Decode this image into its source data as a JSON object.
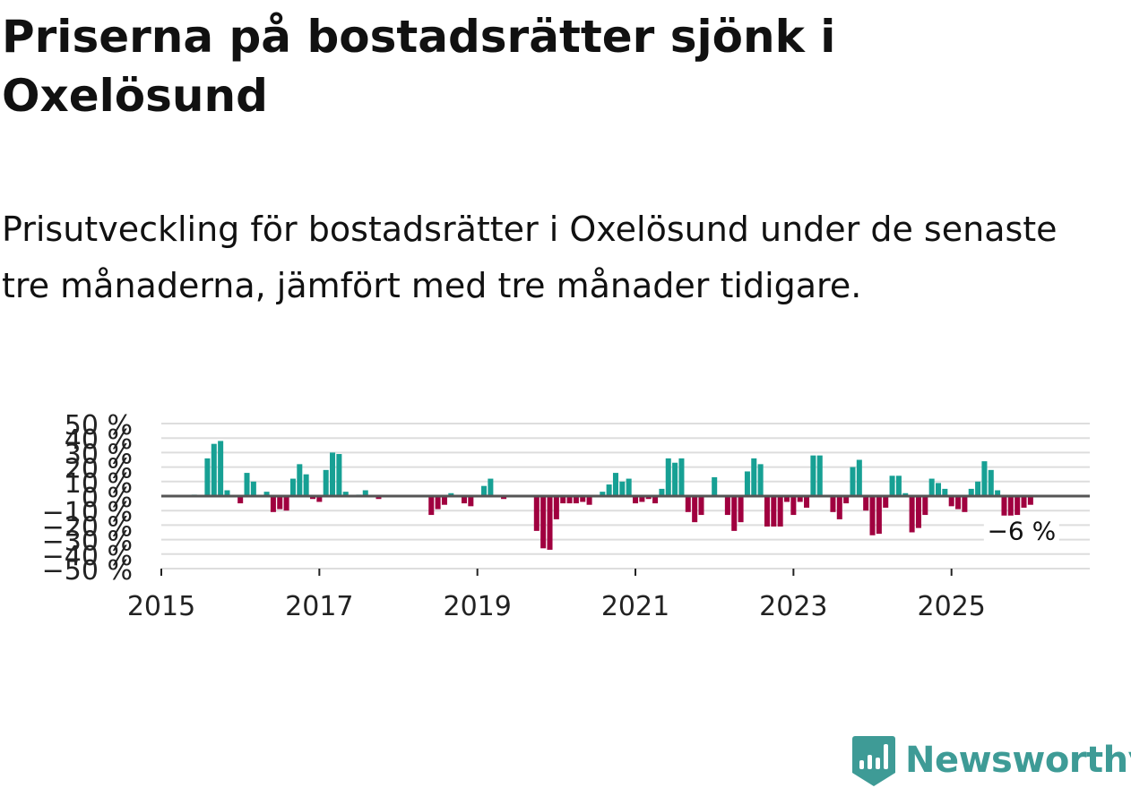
{
  "header": {
    "title": "Priserna på bostadsrätter sjönk i Oxelösund",
    "subtitle": "Prisutveckling för bostadsrätter i Oxelösund under de senaste tre månaderna, jämfört med tre månader tidigare."
  },
  "colors": {
    "positive": "#17a094",
    "negative": "#a0003f",
    "zero_line": "#555555",
    "grid": "#dddddd",
    "brand": "#3e9b96"
  },
  "brand": {
    "name": "Newsworthy",
    "logo_icon": "newsworthy-bar-chart-icon"
  },
  "chart_data": {
    "type": "bar",
    "title": "Priserna på bostadsrätter sjönk i Oxelösund",
    "xlabel": "",
    "ylabel": "",
    "unit": "%",
    "x_range": [
      2015.0,
      2026.75
    ],
    "ylim": [
      -50,
      50
    ],
    "y_ticks": [
      {
        "value": 50,
        "label": "50 %"
      },
      {
        "value": 40,
        "label": "40 %"
      },
      {
        "value": 30,
        "label": "30 %"
      },
      {
        "value": 20,
        "label": "20 %"
      },
      {
        "value": 10,
        "label": "10 %"
      },
      {
        "value": 0,
        "label": "0 %"
      },
      {
        "value": -10,
        "label": "−10 %"
      },
      {
        "value": -20,
        "label": "−20 %"
      },
      {
        "value": -30,
        "label": "−30 %"
      },
      {
        "value": -40,
        "label": "−40 %"
      },
      {
        "value": -50,
        "label": "−50 %"
      }
    ],
    "x_ticks": [
      {
        "value": 2015,
        "label": "2015"
      },
      {
        "value": 2017,
        "label": "2017"
      },
      {
        "value": 2019,
        "label": "2019"
      },
      {
        "value": 2021,
        "label": "2021"
      },
      {
        "value": 2023,
        "label": "2023"
      },
      {
        "value": 2025,
        "label": "2025"
      }
    ],
    "annotation": {
      "date": "2026-01",
      "text": "−6 %"
    },
    "series": [
      {
        "name": "Prisutveckling",
        "points": [
          {
            "date": "2015-06",
            "value": 1
          },
          {
            "date": "2015-08",
            "value": 26
          },
          {
            "date": "2015-09",
            "value": 36
          },
          {
            "date": "2015-10",
            "value": 38
          },
          {
            "date": "2015-11",
            "value": 4
          },
          {
            "date": "2016-01",
            "value": -5
          },
          {
            "date": "2016-02",
            "value": 16
          },
          {
            "date": "2016-03",
            "value": 10
          },
          {
            "date": "2016-05",
            "value": 3
          },
          {
            "date": "2016-06",
            "value": -11
          },
          {
            "date": "2016-07",
            "value": -9
          },
          {
            "date": "2016-08",
            "value": -10
          },
          {
            "date": "2016-09",
            "value": 12
          },
          {
            "date": "2016-10",
            "value": 22
          },
          {
            "date": "2016-11",
            "value": 15
          },
          {
            "date": "2016-12",
            "value": -2
          },
          {
            "date": "2017-01",
            "value": -4
          },
          {
            "date": "2017-02",
            "value": 18
          },
          {
            "date": "2017-03",
            "value": 30
          },
          {
            "date": "2017-04",
            "value": 29
          },
          {
            "date": "2017-05",
            "value": 3
          },
          {
            "date": "2017-07",
            "value": 1
          },
          {
            "date": "2017-08",
            "value": 4
          },
          {
            "date": "2017-10",
            "value": -2
          },
          {
            "date": "2018-06",
            "value": -13
          },
          {
            "date": "2018-07",
            "value": -9
          },
          {
            "date": "2018-08",
            "value": -6
          },
          {
            "date": "2018-09",
            "value": 2
          },
          {
            "date": "2018-11",
            "value": -5
          },
          {
            "date": "2018-12",
            "value": -7
          },
          {
            "date": "2019-02",
            "value": 7
          },
          {
            "date": "2019-03",
            "value": 12
          },
          {
            "date": "2019-05",
            "value": -2
          },
          {
            "date": "2019-10",
            "value": -24
          },
          {
            "date": "2019-11",
            "value": -36
          },
          {
            "date": "2019-12",
            "value": -37
          },
          {
            "date": "2020-01",
            "value": -16
          },
          {
            "date": "2020-02",
            "value": -5
          },
          {
            "date": "2020-03",
            "value": -5
          },
          {
            "date": "2020-04",
            "value": -5
          },
          {
            "date": "2020-05",
            "value": -4
          },
          {
            "date": "2020-06",
            "value": -6
          },
          {
            "date": "2020-08",
            "value": 3
          },
          {
            "date": "2020-09",
            "value": 8
          },
          {
            "date": "2020-10",
            "value": 16
          },
          {
            "date": "2020-11",
            "value": 10
          },
          {
            "date": "2020-12",
            "value": 12
          },
          {
            "date": "2021-01",
            "value": -5
          },
          {
            "date": "2021-02",
            "value": -4
          },
          {
            "date": "2021-03",
            "value": -2
          },
          {
            "date": "2021-04",
            "value": -5
          },
          {
            "date": "2021-05",
            "value": 5
          },
          {
            "date": "2021-06",
            "value": 26
          },
          {
            "date": "2021-07",
            "value": 23
          },
          {
            "date": "2021-08",
            "value": 26
          },
          {
            "date": "2021-09",
            "value": -11
          },
          {
            "date": "2021-10",
            "value": -18
          },
          {
            "date": "2021-11",
            "value": -13
          },
          {
            "date": "2022-01",
            "value": 13
          },
          {
            "date": "2022-03",
            "value": -13
          },
          {
            "date": "2022-04",
            "value": -24
          },
          {
            "date": "2022-05",
            "value": -18
          },
          {
            "date": "2022-06",
            "value": 17
          },
          {
            "date": "2022-07",
            "value": 26
          },
          {
            "date": "2022-08",
            "value": 22
          },
          {
            "date": "2022-09",
            "value": -21
          },
          {
            "date": "2022-10",
            "value": -21
          },
          {
            "date": "2022-11",
            "value": -21
          },
          {
            "date": "2022-12",
            "value": -4
          },
          {
            "date": "2023-01",
            "value": -13
          },
          {
            "date": "2023-02",
            "value": -4
          },
          {
            "date": "2023-03",
            "value": -8
          },
          {
            "date": "2023-04",
            "value": 28
          },
          {
            "date": "2023-05",
            "value": 28
          },
          {
            "date": "2023-07",
            "value": -11
          },
          {
            "date": "2023-08",
            "value": -16
          },
          {
            "date": "2023-09",
            "value": -5
          },
          {
            "date": "2023-10",
            "value": 20
          },
          {
            "date": "2023-11",
            "value": 25
          },
          {
            "date": "2023-12",
            "value": -10
          },
          {
            "date": "2024-01",
            "value": -27
          },
          {
            "date": "2024-02",
            "value": -26
          },
          {
            "date": "2024-03",
            "value": -8
          },
          {
            "date": "2024-04",
            "value": 14
          },
          {
            "date": "2024-05",
            "value": 14
          },
          {
            "date": "2024-06",
            "value": 2
          },
          {
            "date": "2024-07",
            "value": -25
          },
          {
            "date": "2024-08",
            "value": -22
          },
          {
            "date": "2024-09",
            "value": -13
          },
          {
            "date": "2024-10",
            "value": 12
          },
          {
            "date": "2024-11",
            "value": 9
          },
          {
            "date": "2024-12",
            "value": 5
          },
          {
            "date": "2025-01",
            "value": -7
          },
          {
            "date": "2025-02",
            "value": -9
          },
          {
            "date": "2025-03",
            "value": -11
          },
          {
            "date": "2025-04",
            "value": 5
          },
          {
            "date": "2025-05",
            "value": 10
          },
          {
            "date": "2025-06",
            "value": 24
          },
          {
            "date": "2025-07",
            "value": 18
          },
          {
            "date": "2025-08",
            "value": 4
          },
          {
            "date": "2025-09",
            "value": -18
          },
          {
            "date": "2025-10",
            "value": -18
          },
          {
            "date": "2025-11",
            "value": -13
          },
          {
            "date": "2025-12",
            "value": -8
          },
          {
            "date": "2026-01",
            "value": -6
          }
        ]
      }
    ]
  }
}
